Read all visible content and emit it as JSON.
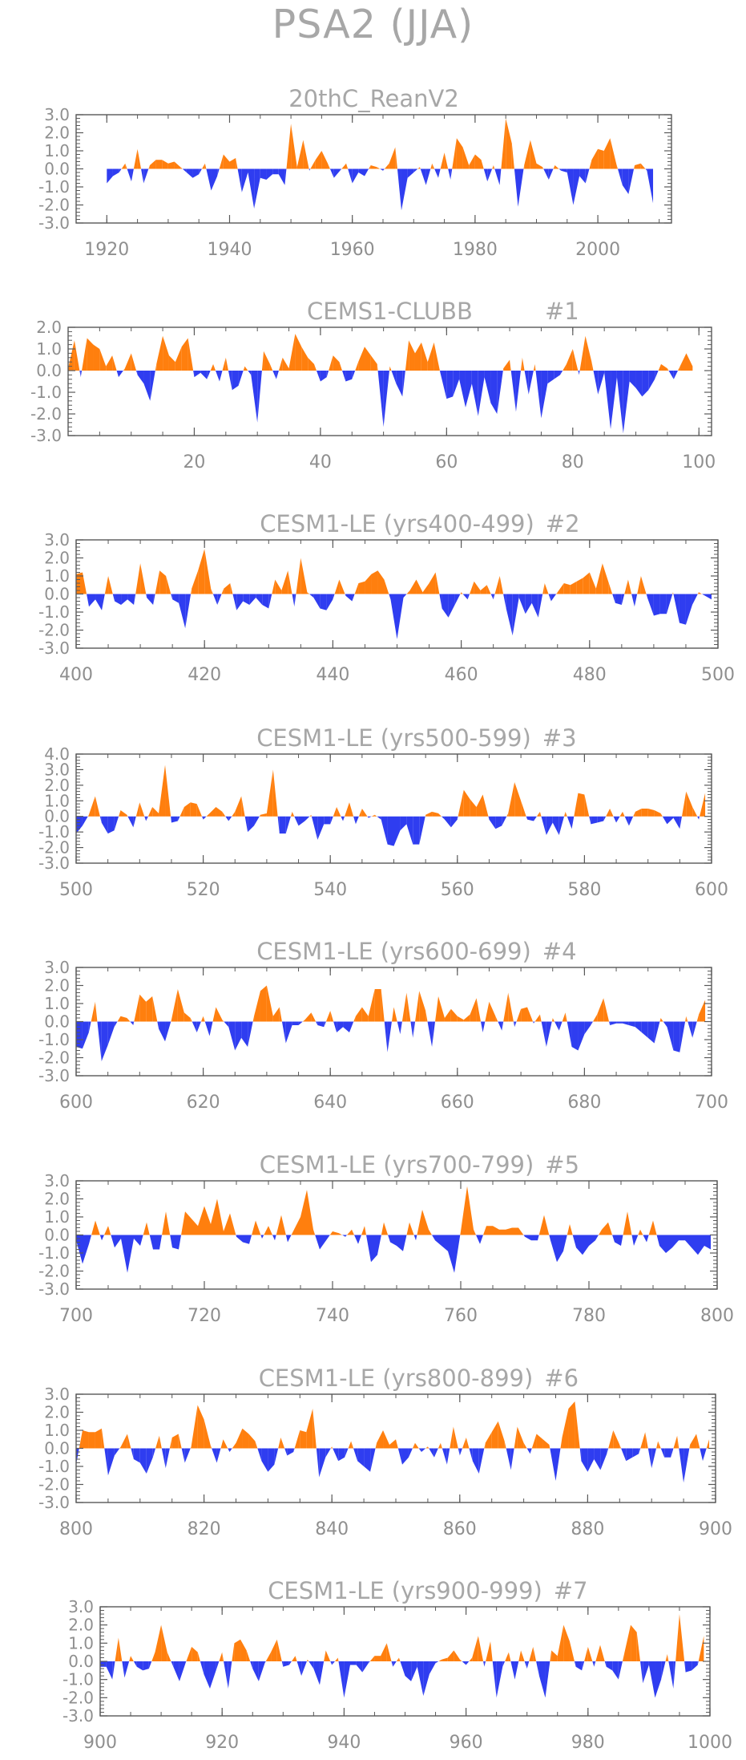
{
  "title": "PSA2 (JJA)",
  "colors": {
    "positive": "#ff7f0e",
    "negative": "#2f3df0",
    "axis": "#595959",
    "text": "#8f8f8f",
    "title": "#a7a7a7"
  },
  "chart_data": [
    {
      "type": "area",
      "title": "20thC_ReanV2",
      "x_start": 1920,
      "xlim": [
        1915,
        2012
      ],
      "xticks": [
        1920,
        1940,
        1960,
        1980,
        2000
      ],
      "ylim": [
        -3,
        3
      ],
      "yticks": [
        "3.0",
        "2.0",
        "1.0",
        "0.0",
        "-1.0",
        "-2.0",
        "-3.0"
      ],
      "values": [
        -0.8,
        -0.4,
        -0.2,
        0.3,
        -0.7,
        1.1,
        -0.8,
        0.2,
        0.5,
        0.5,
        0.3,
        0.4,
        0.1,
        -0.2,
        -0.5,
        -0.3,
        0.3,
        -1.2,
        -0.4,
        0.8,
        0.4,
        0.6,
        -1.3,
        -0.2,
        -2.2,
        -0.5,
        -0.6,
        -0.3,
        -0.3,
        -0.9,
        2.5,
        0.1,
        1.6,
        -0.1,
        0.5,
        1.0,
        0.3,
        -0.5,
        -0.1,
        0.3,
        -0.8,
        -0.2,
        -0.4,
        0.2,
        0.1,
        -0.1,
        0.3,
        1.2,
        -2.3,
        -0.5,
        -0.2,
        0.1,
        -0.9,
        0.3,
        -0.5,
        0.9,
        -0.6,
        1.7,
        1.2,
        0.2,
        0.8,
        0.5,
        -0.7,
        0.2,
        -0.9,
        2.8,
        1.4,
        -2.1,
        0.2,
        1.6,
        0.3,
        0.1,
        -0.6,
        0.2,
        -0.1,
        -0.2,
        -2.0,
        -0.4,
        -0.8,
        0.5,
        1.1,
        1.0,
        1.7,
        0.3,
        -0.9,
        -1.4,
        0.2,
        0.3,
        -0.1,
        -1.9
      ]
    },
    {
      "type": "area",
      "title": "CEMS1-CLUBB",
      "label": "#1",
      "x_start": 0,
      "xlim": [
        0,
        102
      ],
      "xticks": [
        20,
        40,
        60,
        80,
        100
      ],
      "ylim": [
        -3,
        2
      ],
      "yticks": [
        "2.0",
        "1.0",
        "0.0",
        "-1.0",
        "-2.0",
        "-3.0"
      ],
      "values": [
        0.1,
        1.4,
        -0.3,
        1.5,
        1.2,
        1.0,
        0.2,
        0.7,
        -0.3,
        0.1,
        0.8,
        -0.2,
        -0.6,
        -1.4,
        0.3,
        1.6,
        0.7,
        0.4,
        1.1,
        1.5,
        -0.3,
        -0.1,
        -0.4,
        0.3,
        -0.5,
        0.6,
        -0.9,
        -0.7,
        0.2,
        -0.2,
        -2.4,
        0.9,
        0.3,
        -0.4,
        0.6,
        0.1,
        1.7,
        1.1,
        0.6,
        0.3,
        -0.5,
        -0.3,
        0.7,
        0.4,
        -0.5,
        -0.4,
        0.4,
        1.1,
        0.7,
        0.3,
        -2.6,
        0.2,
        -0.6,
        -1.2,
        1.4,
        0.8,
        1.3,
        0.4,
        1.3,
        -0.1,
        -1.3,
        -1.2,
        -0.4,
        -1.7,
        -0.6,
        -2.1,
        -0.3,
        -1.5,
        -2.0,
        0.1,
        0.5,
        -1.9,
        0.6,
        -1.1,
        0.3,
        -2.2,
        -0.6,
        -0.4,
        -0.2,
        0.3,
        1.0,
        -0.2,
        1.6,
        0.4,
        -1.1,
        -0.1,
        -2.7,
        -0.3,
        -2.9,
        -0.5,
        -0.8,
        -1.2,
        -0.9,
        -0.4,
        0.3,
        0.1,
        -0.4,
        0.2,
        0.8,
        0.2
      ]
    },
    {
      "type": "area",
      "title": "CESM1-LE (yrs400-499)",
      "label": "#2",
      "x_start": 400,
      "xlim": [
        400,
        500
      ],
      "xticks": [
        400,
        420,
        440,
        460,
        480,
        500
      ],
      "ylim": [
        -3,
        3
      ],
      "yticks": [
        "3.0",
        "2.0",
        "1.0",
        "0.0",
        "-1.0",
        "-2.0",
        "-3.0"
      ],
      "values": [
        1.1,
        1.2,
        -0.7,
        -0.3,
        -0.9,
        1.0,
        -0.4,
        -0.6,
        -0.3,
        -0.6,
        1.7,
        -0.2,
        -0.6,
        1.3,
        1.0,
        -0.3,
        -0.5,
        -1.9,
        0.3,
        1.3,
        2.5,
        0.3,
        -0.6,
        0.3,
        0.6,
        -0.9,
        -0.4,
        -0.6,
        -0.2,
        -0.6,
        -0.8,
        0.8,
        0.2,
        1.3,
        -0.7,
        2.0,
        0.1,
        -0.2,
        -0.8,
        -0.9,
        -0.3,
        0.8,
        -0.1,
        -0.4,
        0.6,
        0.7,
        1.1,
        1.3,
        0.8,
        -0.3,
        -2.5,
        -0.2,
        0.2,
        0.8,
        0.1,
        0.6,
        1.2,
        -0.8,
        -1.3,
        -0.6,
        0.1,
        -0.3,
        0.7,
        0.2,
        0.5,
        -0.3,
        1.0,
        -0.8,
        -2.3,
        -0.2,
        -1.1,
        -0.5,
        -1.3,
        0.6,
        -0.4,
        0.1,
        0.6,
        0.5,
        0.7,
        0.9,
        1.2,
        0.3,
        1.7,
        0.6,
        -0.5,
        -0.6,
        0.8,
        -0.7,
        1.0,
        -0.2,
        -1.2,
        -1.1,
        -1.1,
        0.1,
        -1.6,
        -1.7,
        -0.6,
        0.1,
        -0.1,
        -0.3
      ]
    },
    {
      "type": "area",
      "title": "CESM1-LE (yrs500-599)",
      "label": "#3",
      "x_start": 500,
      "xlim": [
        500,
        600
      ],
      "xticks": [
        500,
        520,
        540,
        560,
        580,
        600
      ],
      "ylim": [
        -3,
        4
      ],
      "yticks": [
        "4.0",
        "3.0",
        "2.0",
        "1.0",
        "0.0",
        "-1.0",
        "-2.0",
        "-3.0"
      ],
      "values": [
        -1.1,
        -0.6,
        0.1,
        1.3,
        -0.4,
        -1.1,
        -0.9,
        0.4,
        0.1,
        -0.7,
        0.9,
        -0.3,
        0.6,
        0.2,
        3.3,
        -0.4,
        -0.3,
        0.6,
        0.9,
        0.8,
        -0.2,
        0.2,
        0.6,
        0.3,
        -0.3,
        0.3,
        1.3,
        -1.0,
        -0.6,
        0.1,
        0.2,
        3.0,
        -1.1,
        -1.1,
        0.3,
        -0.6,
        -0.3,
        0.1,
        -1.5,
        -0.5,
        -0.5,
        0.6,
        -0.3,
        0.9,
        -0.5,
        0.5,
        -0.1,
        0.1,
        -0.2,
        -1.8,
        -1.9,
        -0.9,
        -0.5,
        -1.8,
        -1.8,
        0.1,
        0.3,
        0.2,
        -0.2,
        -0.7,
        -0.2,
        1.7,
        1.1,
        0.6,
        1.4,
        -0.2,
        -0.8,
        -0.6,
        0.2,
        2.2,
        1.0,
        -0.2,
        -0.3,
        0.3,
        -1.2,
        -0.4,
        -1.2,
        0.3,
        -0.8,
        1.5,
        1.4,
        -0.5,
        -0.4,
        -0.3,
        0.5,
        -0.4,
        0.3,
        -0.6,
        0.3,
        0.5,
        0.5,
        0.4,
        0.2,
        -0.5,
        -0.1,
        -0.8,
        1.6,
        0.6,
        -0.2,
        1.5
      ]
    },
    {
      "type": "area",
      "title": "CESM1-LE (yrs600-699)",
      "label": "#4",
      "x_start": 600,
      "xlim": [
        600,
        700
      ],
      "xticks": [
        600,
        620,
        640,
        660,
        680,
        700
      ],
      "ylim": [
        -3,
        3
      ],
      "yticks": [
        "3.0",
        "2.0",
        "1.0",
        "0.0",
        "-1.0",
        "-2.0",
        "-3.0"
      ],
      "values": [
        -1.4,
        -1.5,
        -0.6,
        1.1,
        -2.2,
        -1.3,
        -0.3,
        0.3,
        0.2,
        -0.2,
        1.5,
        1.1,
        1.4,
        -0.4,
        -1.1,
        0.1,
        1.8,
        0.5,
        0.2,
        -0.6,
        0.3,
        -0.8,
        0.8,
        0.1,
        -0.3,
        -1.6,
        -0.9,
        -1.4,
        0.3,
        1.7,
        2.0,
        0.3,
        0.8,
        -1.2,
        -0.2,
        -0.2,
        0.1,
        0.5,
        -0.2,
        -0.3,
        0.6,
        -0.6,
        -0.3,
        -0.6,
        0.3,
        0.8,
        0.3,
        1.8,
        1.8,
        -1.7,
        0.8,
        -0.7,
        1.6,
        -0.9,
        1.7,
        0.6,
        -1.4,
        1.4,
        0.2,
        0.7,
        0.3,
        0.1,
        0.4,
        1.3,
        -0.6,
        1.1,
        0.3,
        -0.5,
        1.6,
        -0.3,
        0.7,
        0.8,
        -0.1,
        0.4,
        -1.4,
        0.2,
        -0.5,
        0.5,
        -1.4,
        -1.6,
        -0.7,
        -0.2,
        0.4,
        1.3,
        -0.2,
        -0.1,
        -0.1,
        -0.2,
        -0.3,
        -0.6,
        -0.9,
        -1.2,
        0.2,
        -0.3,
        -1.6,
        -1.7,
        0.3,
        -0.9,
        0.4,
        1.2
      ]
    },
    {
      "type": "area",
      "title": "CESM1-LE (yrs700-799)",
      "label": "#5",
      "x_start": 700,
      "xlim": [
        700,
        800
      ],
      "xticks": [
        700,
        720,
        740,
        760,
        780,
        800
      ],
      "ylim": [
        -3,
        3
      ],
      "yticks": [
        "3.0",
        "2.0",
        "1.0",
        "0.0",
        "-1.0",
        "-2.0",
        "-3.0"
      ],
      "values": [
        -0.3,
        -1.6,
        -0.5,
        0.8,
        -0.3,
        0.5,
        -0.7,
        -0.2,
        -2.1,
        -0.2,
        -0.6,
        0.7,
        -0.8,
        -0.8,
        1.3,
        -0.7,
        -0.8,
        1.3,
        0.9,
        0.5,
        1.6,
        0.6,
        2.0,
        0.2,
        1.2,
        -0.1,
        -0.4,
        -0.5,
        0.8,
        -0.2,
        0.5,
        -0.3,
        1.1,
        -0.4,
        0.3,
        1.0,
        2.5,
        0.3,
        -0.8,
        -0.3,
        0.2,
        0.1,
        -0.1,
        0.3,
        -0.5,
        0.5,
        -1.5,
        -1.1,
        0.7,
        -0.4,
        -0.6,
        -0.9,
        0.7,
        -0.3,
        1.4,
        0.3,
        -0.3,
        -0.6,
        -0.9,
        -2.1,
        0.2,
        2.7,
        0.3,
        -0.5,
        0.5,
        0.5,
        0.3,
        0.3,
        0.4,
        0.4,
        -0.1,
        -0.3,
        -0.3,
        1.1,
        -0.3,
        -1.5,
        -0.9,
        0.6,
        -0.7,
        -1.1,
        -0.6,
        -0.3,
        0.3,
        0.7,
        -0.4,
        -0.6,
        1.3,
        -0.6,
        0.3,
        -0.4,
        0.8,
        -0.6,
        -1.0,
        -0.7,
        -0.3,
        -0.3,
        -0.7,
        -1.1,
        -0.6,
        -0.8
      ]
    },
    {
      "type": "area",
      "title": "CESM1-LE (yrs800-899)",
      "label": "#6",
      "x_start": 800,
      "xlim": [
        800,
        900
      ],
      "xticks": [
        800,
        820,
        840,
        860,
        880,
        900
      ],
      "ylim": [
        -3,
        3
      ],
      "yticks": [
        "3.0",
        "2.0",
        "1.0",
        "0.0",
        "-1.0",
        "-2.0",
        "-3.0"
      ],
      "values": [
        -0.9,
        1.0,
        0.9,
        0.9,
        1.1,
        -1.5,
        -0.4,
        0.1,
        0.8,
        -0.6,
        -0.8,
        -1.4,
        -0.5,
        0.7,
        -1.1,
        0.6,
        0.8,
        -0.8,
        0.1,
        2.4,
        1.6,
        0.2,
        -0.8,
        0.5,
        -0.2,
        0.3,
        1.1,
        0.8,
        0.4,
        -0.7,
        -1.3,
        -0.9,
        0.6,
        -0.4,
        -0.2,
        1.0,
        0.9,
        2.2,
        -1.6,
        -0.5,
        0.1,
        -0.7,
        -0.5,
        0.4,
        -0.7,
        -1.0,
        -1.3,
        0.3,
        1.0,
        0.2,
        0.5,
        -0.9,
        -0.5,
        0.3,
        -0.2,
        0.1,
        -0.5,
        0.3,
        -0.9,
        1.2,
        -0.4,
        0.6,
        -0.7,
        -1.4,
        0.3,
        0.9,
        1.5,
        0.4,
        -1.2,
        1.2,
        0.3,
        -0.3,
        0.8,
        0.5,
        0.2,
        -1.8,
        0.6,
        2.2,
        2.6,
        -0.7,
        -1.3,
        -0.6,
        -1.2,
        -0.3,
        1.0,
        0.2,
        -0.7,
        -0.5,
        -0.3,
        0.9,
        -1.1,
        0.4,
        -0.5,
        -0.5,
        0.7,
        -1.9,
        0.2,
        0.8,
        -0.7,
        0.5
      ]
    },
    {
      "type": "area",
      "title": "CESM1-LE (yrs900-999)",
      "label": "#7",
      "x_start": 900,
      "xlim": [
        900,
        1000
      ],
      "xticks": [
        900,
        920,
        940,
        960,
        980,
        1000
      ],
      "ylim": [
        -3,
        3
      ],
      "yticks": [
        "3.0",
        "2.0",
        "1.0",
        "0.0",
        "-1.0",
        "-2.0",
        "-3.0"
      ],
      "values": [
        -0.3,
        -0.3,
        -1.0,
        1.3,
        -0.9,
        0.3,
        -0.3,
        -0.5,
        -0.4,
        0.5,
        2.0,
        0.5,
        -0.3,
        -1.1,
        -0.1,
        0.8,
        0.5,
        -0.7,
        -1.5,
        -0.5,
        0.5,
        -1.5,
        1.0,
        1.2,
        0.6,
        -0.4,
        -1.1,
        -0.1,
        0.5,
        1.2,
        -0.3,
        -0.2,
        0.3,
        -0.8,
        0.1,
        -0.4,
        -1.3,
        0.6,
        -0.2,
        0.2,
        -2.0,
        -0.2,
        -0.2,
        -0.6,
        -0.1,
        0.3,
        0.3,
        1.0,
        -0.3,
        0.2,
        -0.8,
        -1.1,
        -0.3,
        -1.9,
        -0.7,
        -0.1,
        0.1,
        0.2,
        0.6,
        0.1,
        -0.2,
        0.2,
        1.4,
        -0.3,
        1.1,
        -2.0,
        -0.3,
        0.5,
        -1.0,
        0.6,
        -0.4,
        0.8,
        -0.8,
        -2.0,
        0.6,
        0.3,
        2.0,
        1.1,
        -0.3,
        -0.5,
        0.8,
        -0.3,
        0.9,
        -0.3,
        -0.5,
        -1.0,
        0.5,
        2.0,
        1.6,
        -1.2,
        -0.2,
        -2.0,
        -1.0,
        0.4,
        -1.5,
        2.6,
        -0.6,
        -0.5,
        -0.2,
        1.4
      ]
    }
  ]
}
